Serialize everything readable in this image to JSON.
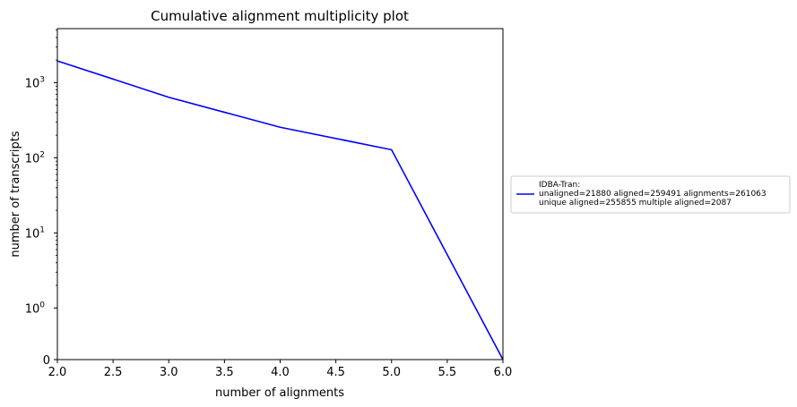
{
  "chart_data": {
    "type": "line",
    "title": "Cumulative alignment multiplicity plot",
    "xlabel": "number of alignments",
    "ylabel": "number of transcripts",
    "xlim": [
      2.0,
      6.0
    ],
    "yscale": "symlog",
    "x_ticks": [
      "2.0",
      "2.5",
      "3.0",
      "3.5",
      "4.0",
      "4.5",
      "5.0",
      "5.5",
      "6.0"
    ],
    "y_ticks": [
      {
        "value": 0,
        "base": "0",
        "exp": ""
      },
      {
        "value": 1,
        "base": "10",
        "exp": "0"
      },
      {
        "value": 10,
        "base": "10",
        "exp": "1"
      },
      {
        "value": 100,
        "base": "10",
        "exp": "2"
      },
      {
        "value": 1000,
        "base": "10",
        "exp": "3"
      }
    ],
    "grid": false,
    "legend_position": "outside right",
    "series": [
      {
        "name": "IDBA-Tran:",
        "legend_lines": [
          "unaligned=21880 aligned=259491 alignments=261063",
          "unique aligned=255855 multiple aligned=2087"
        ],
        "color": "#0000ff",
        "x": [
          2,
          3,
          4,
          5,
          6
        ],
        "y": [
          1950,
          640,
          255,
          128,
          0
        ]
      }
    ]
  }
}
